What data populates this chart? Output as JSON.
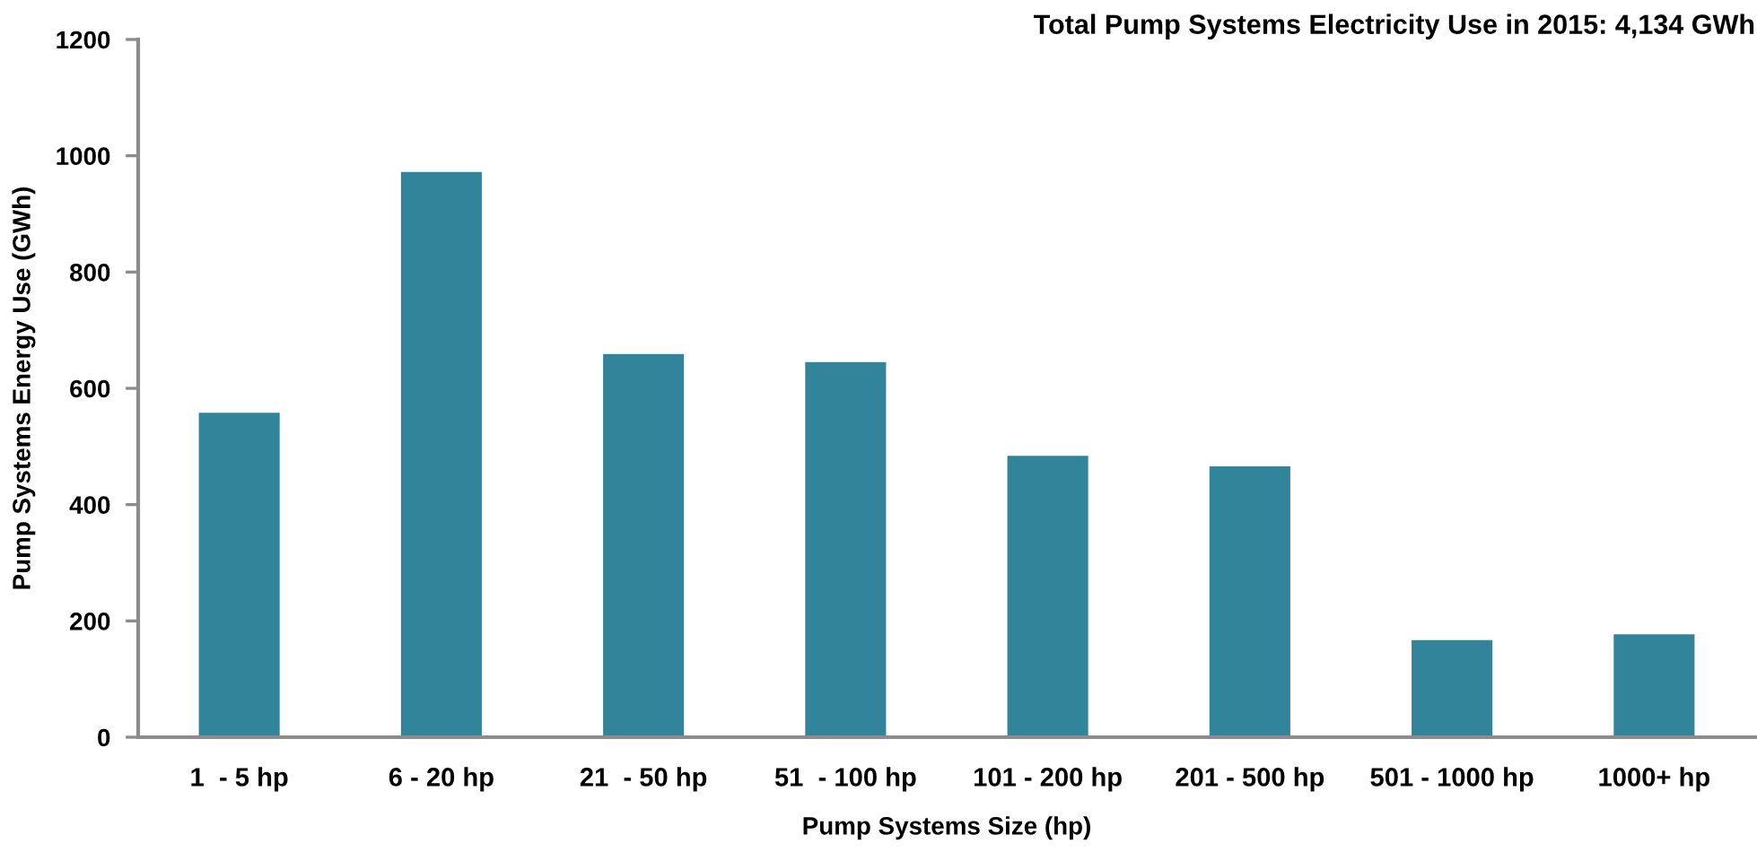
{
  "chart_data": {
    "type": "bar",
    "title": "Total Pump Systems Electricity Use in 2015: 4,134 GWh",
    "xlabel": "Pump Systems Size (hp)",
    "ylabel": "Pump Systems Energy Use (GWh)",
    "categories": [
      "1  - 5 hp",
      "6 - 20 hp",
      "21  - 50 hp",
      "51  - 100 hp",
      "101 - 200 hp",
      "201 - 500 hp",
      "501 - 1000 hp",
      "1000+ hp"
    ],
    "values": [
      558,
      972,
      659,
      645,
      484,
      466,
      167,
      177
    ],
    "color": "#32849b",
    "ylim": [
      0,
      1200
    ],
    "yticks": [
      0,
      200,
      400,
      600,
      800,
      1000,
      1200
    ]
  }
}
